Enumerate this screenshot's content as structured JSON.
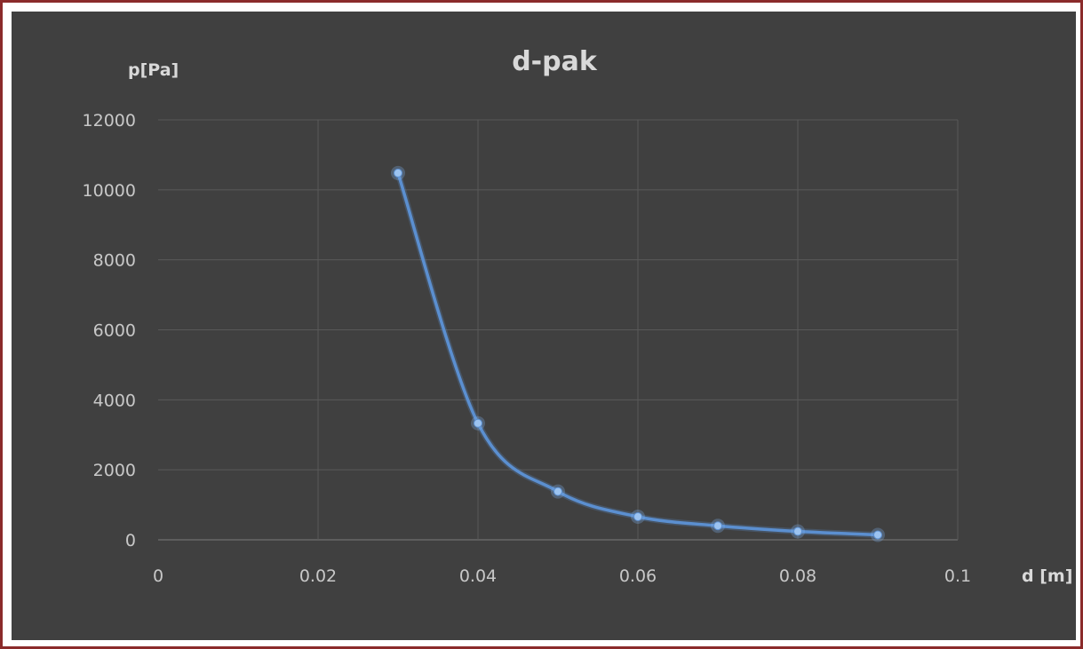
{
  "chart_data": {
    "type": "scatter",
    "title": "d-pak",
    "xlabel": "d [m]",
    "ylabel": "p[Pa]",
    "xlim": [
      0,
      0.1
    ],
    "ylim": [
      0,
      12000
    ],
    "x_ticks": [
      "0",
      "0.02",
      "0.04",
      "0.06",
      "0.08",
      "0.1"
    ],
    "y_ticks": [
      "0",
      "2000",
      "4000",
      "6000",
      "8000",
      "10000",
      "12000"
    ],
    "x_tick_values": [
      0,
      0.02,
      0.04,
      0.06,
      0.08,
      0.1
    ],
    "y_tick_values": [
      0,
      2000,
      4000,
      6000,
      8000,
      10000,
      12000
    ],
    "grid": true,
    "smooth_line": true,
    "series": [
      {
        "x": [
          0.03,
          0.04,
          0.05,
          0.06,
          0.07,
          0.08,
          0.09
        ],
        "y": [
          10480,
          3330,
          1380,
          660,
          400,
          240,
          140
        ],
        "color": "#5b8fd0"
      }
    ]
  },
  "colors": {
    "background": "#404040",
    "frame": "#8b2b2b",
    "text": "#d9d9d9",
    "grid": "#595959"
  }
}
